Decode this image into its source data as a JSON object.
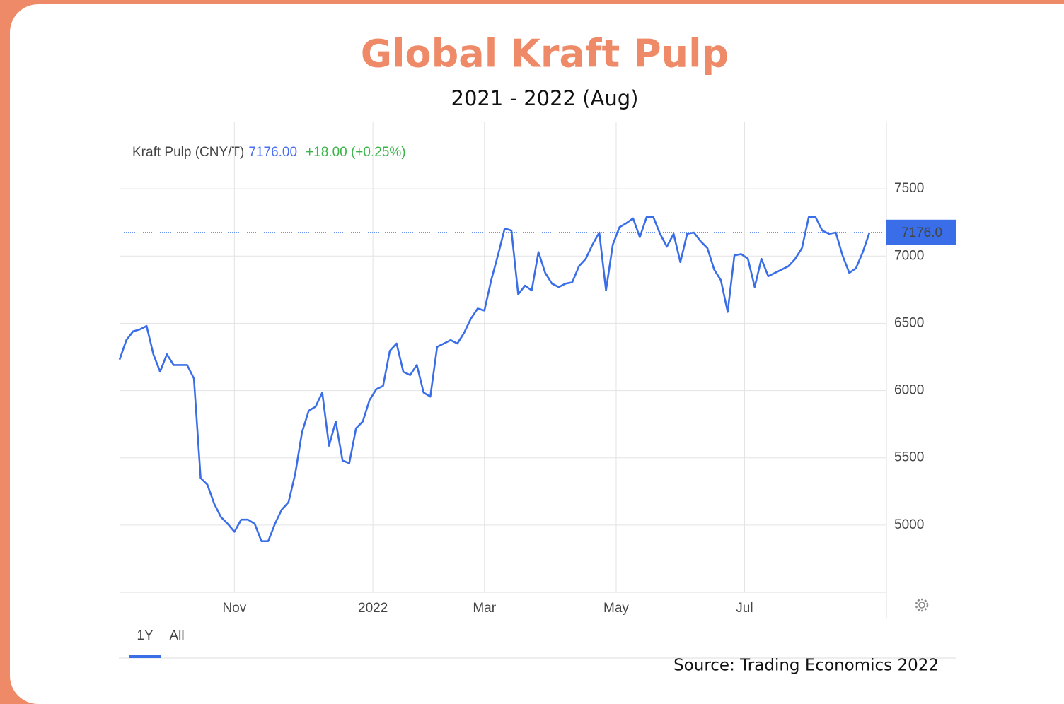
{
  "chart_data": {
    "type": "line",
    "title": "Global Kraft Pulp",
    "subtitle": "2021 - 2022 (Aug)",
    "legend_name": "Kraft Pulp (CNY/T)",
    "legend_price": "7176.00",
    "legend_change": "+18.00 (+0.25%)",
    "last_value": 7176,
    "last_label": "7176.0",
    "ranges": [
      "1Y",
      "All"
    ],
    "source": "Source: Trading Economics 2022",
    "color": "#3a6ee8",
    "grid": true,
    "values": [
      6230,
      6375,
      6440,
      6455,
      6480,
      6270,
      6140,
      6270,
      6190,
      6190,
      6190,
      6090,
      5350,
      5300,
      5160,
      5060,
      5010,
      4950,
      5040,
      5040,
      5010,
      4880,
      4880,
      5010,
      5115,
      5170,
      5380,
      5690,
      5850,
      5880,
      5985,
      5590,
      5770,
      5480,
      5460,
      5720,
      5770,
      5930,
      6010,
      6035,
      6295,
      6350,
      6140,
      6115,
      6190,
      5985,
      5955,
      6325,
      6350,
      6375,
      6350,
      6430,
      6535,
      6610,
      6595,
      6820,
      7005,
      7205,
      7190,
      6715,
      6780,
      6745,
      7030,
      6875,
      6795,
      6770,
      6795,
      6805,
      6925,
      6980,
      7085,
      7175,
      6745,
      7085,
      7215,
      7245,
      7280,
      7140,
      7290,
      7290,
      7165,
      7070,
      7165,
      6955,
      7165,
      7175,
      7110,
      7060,
      6900,
      6820,
      6585,
      7005,
      7015,
      6980,
      6770,
      6980,
      6850,
      6875,
      6900,
      6925,
      6980,
      7060,
      7290,
      7290,
      7190,
      7165,
      7175,
      7005,
      6875,
      6910,
      7030,
      7176
    ],
    "xlim": [
      0,
      113.5
    ],
    "xticks": [
      {
        "value": 17,
        "label": "Nov"
      },
      {
        "value": 37.5,
        "label": "2022"
      },
      {
        "value": 54,
        "label": "Mar"
      },
      {
        "value": 73.5,
        "label": "May"
      },
      {
        "value": 92.5,
        "label": "Jul"
      }
    ],
    "ylim": [
      4500,
      8000
    ],
    "yticks": [
      5000,
      5500,
      6000,
      6500,
      7000,
      7500
    ]
  }
}
